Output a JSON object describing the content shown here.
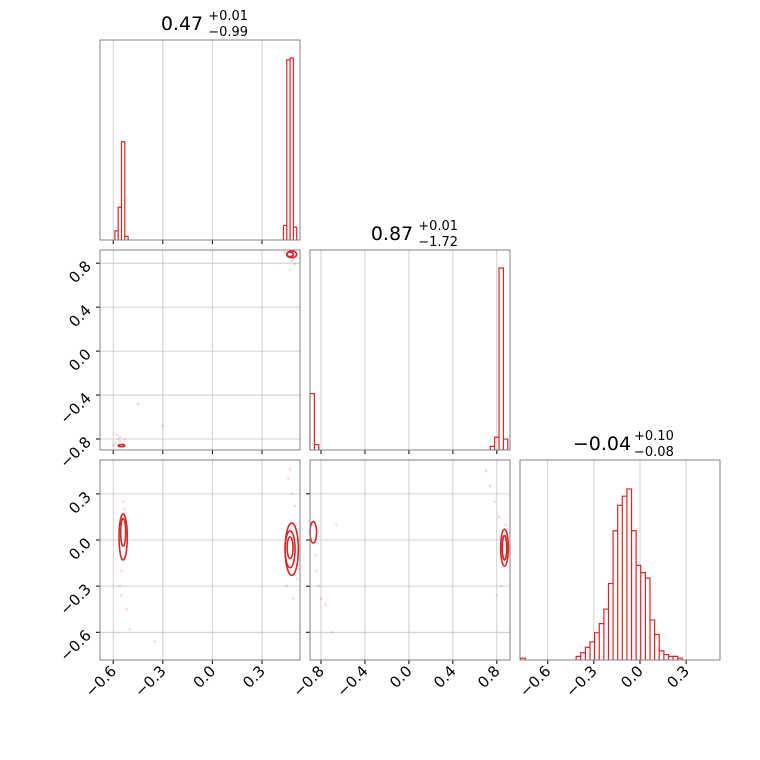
{
  "chart_data": {
    "type": "corner",
    "color": "#d62728",
    "parameters": [
      {
        "title": {
          "median": "0.47",
          "plus": "+0.01",
          "minus": "−0.99"
        },
        "range": [
          -0.68,
          0.53
        ],
        "ticks": [
          -0.6,
          -0.3,
          0.0,
          0.3
        ],
        "tick_labels": [
          "−0.6",
          "−0.3",
          "0.0",
          "0.3"
        ],
        "hist": {
          "x": [
            -0.58,
            -0.56,
            -0.54,
            -0.52,
            0.44,
            0.46,
            0.48,
            0.5
          ],
          "y": [
            0.05,
            0.18,
            0.54,
            0.02,
            0.08,
            0.99,
            1.0,
            0.07
          ]
        }
      },
      {
        "title": {
          "median": "0.87",
          "plus": "+0.01",
          "minus": "−1.72"
        },
        "range": [
          -0.9,
          0.92
        ],
        "ticks": [
          -0.8,
          -0.4,
          0.0,
          0.4,
          0.8
        ],
        "tick_labels": [
          "−0.8",
          "−0.4",
          "0.0",
          "0.4",
          "0.8"
        ],
        "hist": {
          "x": [
            -0.88,
            -0.84,
            0.76,
            0.8,
            0.84,
            0.88
          ],
          "y": [
            0.31,
            0.03,
            0.02,
            0.07,
            1.0,
            0.06
          ]
        }
      },
      {
        "title": {
          "median": "−0.04",
          "plus": "+0.10",
          "minus": "−0.08"
        },
        "range": [
          -0.78,
          0.52
        ],
        "ticks": [
          -0.6,
          -0.3,
          0.0,
          0.3
        ],
        "tick_labels": [
          "−0.6",
          "−0.3",
          "0.0",
          "0.3"
        ],
        "hist": {
          "x": [
            -0.76,
            -0.4,
            -0.37,
            -0.34,
            -0.31,
            -0.28,
            -0.25,
            -0.22,
            -0.19,
            -0.16,
            -0.13,
            -0.1,
            -0.07,
            -0.04,
            -0.01,
            0.02,
            0.05,
            0.08,
            0.11,
            0.14,
            0.17,
            0.2,
            0.23,
            0.26
          ],
          "y": [
            0.01,
            0.02,
            0.04,
            0.07,
            0.1,
            0.15,
            0.2,
            0.28,
            0.42,
            0.71,
            0.85,
            0.9,
            0.94,
            0.71,
            0.52,
            0.48,
            0.45,
            0.22,
            0.14,
            0.05,
            0.03,
            0.02,
            0.02,
            0.01
          ]
        }
      }
    ],
    "pairs": [
      {
        "x_param": 0,
        "y_param": 1,
        "contours": [
          {
            "cx": -0.55,
            "cy": -0.86,
            "rx": 0.02,
            "ry": 0.01
          },
          {
            "cx": 0.47,
            "cy": 0.88,
            "rx": 0.02,
            "ry": 0.02
          },
          {
            "cx": 0.48,
            "cy": 0.88,
            "rx": 0.03,
            "ry": 0.03
          }
        ],
        "points": [
          [
            -0.58,
            -0.76
          ],
          [
            -0.57,
            -0.8
          ],
          [
            -0.56,
            -0.82
          ],
          [
            -0.59,
            -0.84
          ],
          [
            -0.54,
            -0.85
          ],
          [
            -0.56,
            -0.78
          ],
          [
            -0.45,
            -0.48
          ],
          [
            -0.3,
            -0.68
          ],
          [
            0.44,
            0.9
          ],
          [
            0.46,
            0.86
          ],
          [
            0.49,
            0.84
          ],
          [
            0.5,
            0.79
          ],
          [
            0.47,
            0.74
          ],
          [
            0.48,
            0.82
          ],
          [
            0.45,
            0.88
          ],
          [
            0.5,
            0.88
          ],
          [
            -0.6,
            -0.86
          ],
          [
            -0.53,
            -0.8
          ]
        ]
      },
      {
        "x_param": 0,
        "y_param": 2,
        "contours": [
          {
            "cx": -0.54,
            "cy": 0.05,
            "rx": 0.015,
            "ry": 0.09
          },
          {
            "cx": -0.54,
            "cy": 0.02,
            "rx": 0.025,
            "ry": 0.15
          },
          {
            "cx": 0.47,
            "cy": -0.05,
            "rx": 0.018,
            "ry": 0.07
          },
          {
            "cx": 0.47,
            "cy": -0.06,
            "rx": 0.03,
            "ry": 0.12
          },
          {
            "cx": 0.48,
            "cy": -0.06,
            "rx": 0.04,
            "ry": 0.17
          }
        ],
        "points": [
          [
            -0.54,
            0.25
          ],
          [
            -0.53,
            0.2
          ],
          [
            -0.55,
            -0.2
          ],
          [
            -0.56,
            -0.3
          ],
          [
            -0.52,
            -0.45
          ],
          [
            -0.5,
            -0.58
          ],
          [
            -0.55,
            -0.36
          ],
          [
            -0.35,
            -0.66
          ],
          [
            0.46,
            0.4
          ],
          [
            0.47,
            0.46
          ],
          [
            0.48,
            0.3
          ],
          [
            0.5,
            0.22
          ],
          [
            0.45,
            -0.3
          ],
          [
            0.49,
            -0.38
          ],
          [
            0.51,
            -0.25
          ],
          [
            0.47,
            -0.2
          ],
          [
            0.5,
            0.1
          ]
        ]
      },
      {
        "x_param": 1,
        "y_param": 2,
        "contours": [
          {
            "cx": -0.87,
            "cy": 0.05,
            "rx": 0.03,
            "ry": 0.07
          },
          {
            "cx": 0.87,
            "cy": -0.05,
            "rx": 0.02,
            "ry": 0.08
          },
          {
            "cx": 0.87,
            "cy": -0.05,
            "rx": 0.035,
            "ry": 0.12
          }
        ],
        "points": [
          [
            -0.87,
            0.1
          ],
          [
            -0.86,
            0.0
          ],
          [
            -0.85,
            -0.1
          ],
          [
            -0.84,
            -0.2
          ],
          [
            -0.82,
            -0.3
          ],
          [
            -0.8,
            -0.38
          ],
          [
            -0.76,
            -0.42
          ],
          [
            -0.7,
            -0.6
          ],
          [
            -0.66,
            0.1
          ],
          [
            0.7,
            0.45
          ],
          [
            0.74,
            0.35
          ],
          [
            0.78,
            0.25
          ],
          [
            0.82,
            0.15
          ],
          [
            0.84,
            0.0
          ],
          [
            0.86,
            -0.15
          ],
          [
            0.84,
            -0.3
          ],
          [
            0.8,
            -0.36
          ],
          [
            0.88,
            0.1
          ]
        ]
      }
    ]
  }
}
